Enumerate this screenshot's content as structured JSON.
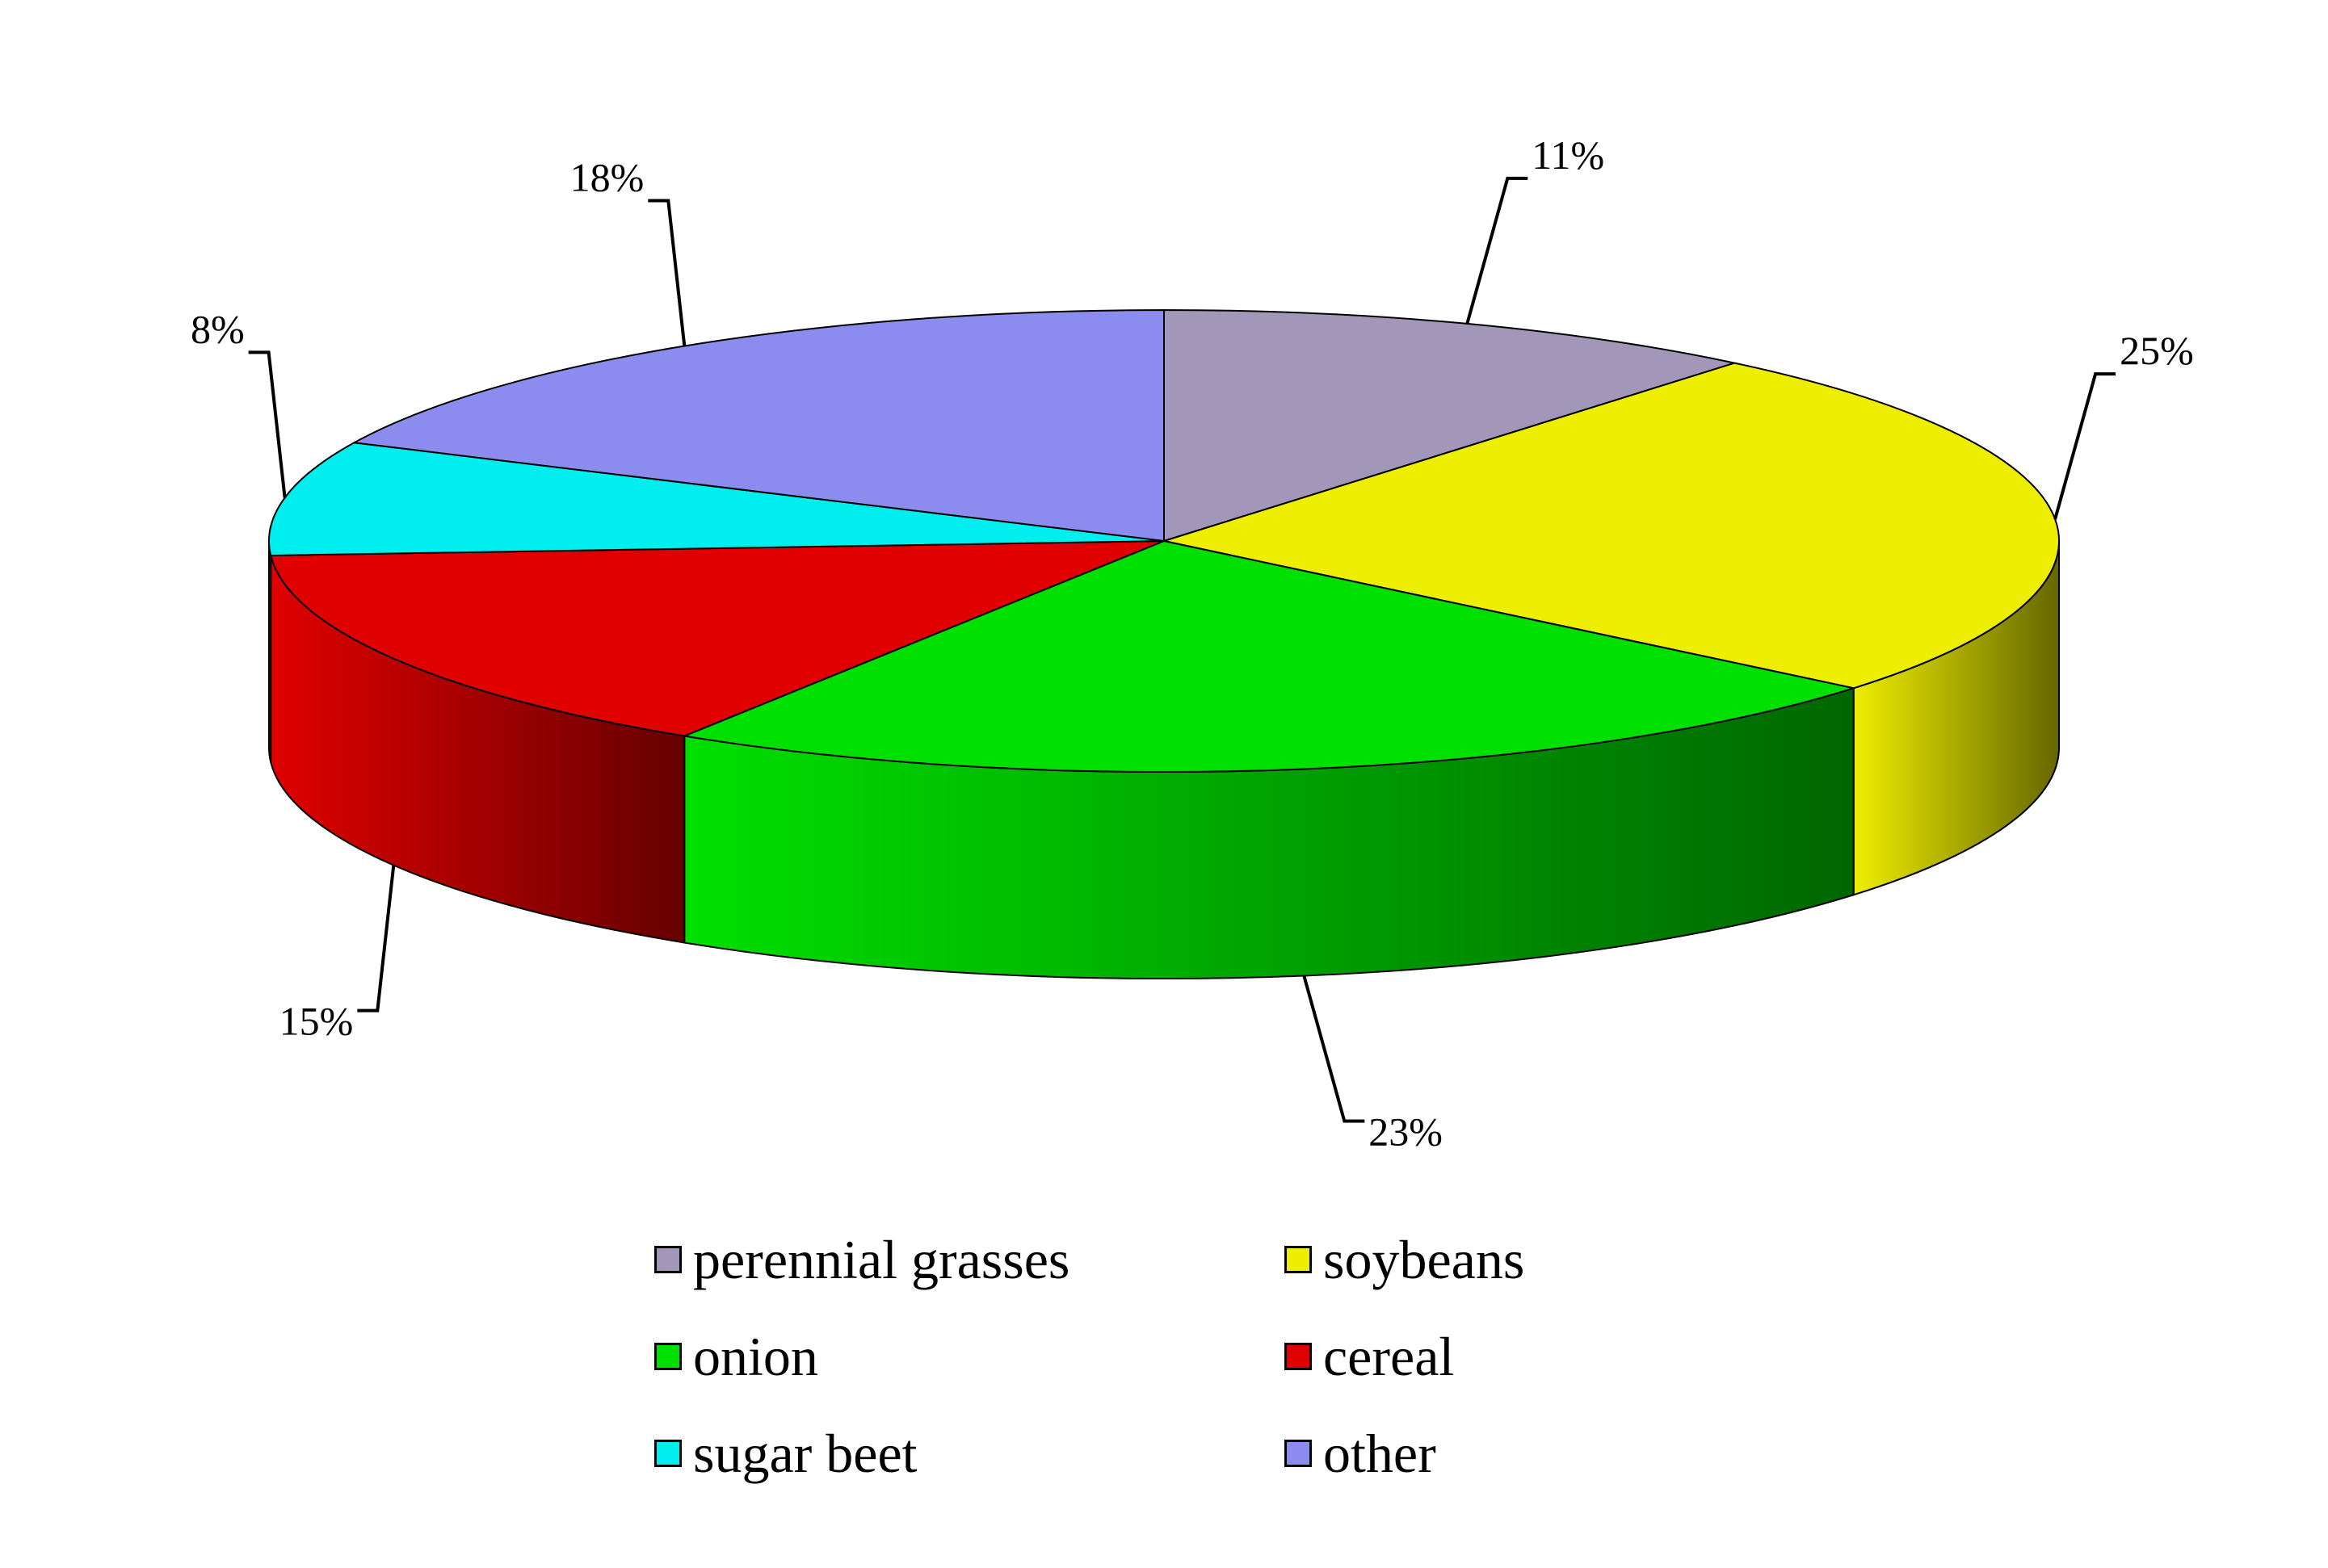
{
  "chart_data": {
    "type": "pie",
    "title": "",
    "three_d": true,
    "start_angle_deg": 90,
    "direction": "clockwise",
    "legend_position": "bottom",
    "categories": [
      "perennial grasses",
      "soybeans",
      "onion",
      "cereal",
      "sugar beet",
      "other"
    ],
    "values": [
      11,
      25,
      23,
      15,
      8,
      18
    ],
    "labels": [
      "11%",
      "25%",
      "23%",
      "15%",
      "8%",
      "18%"
    ],
    "colors": [
      "#a297b9",
      "#eeee00",
      "#00e000",
      "#e00000",
      "#00eeee",
      "#8c8cee"
    ],
    "side_colors_dark": [
      "#5a5470",
      "#666600",
      "#006600",
      "#660000",
      "#006666",
      "#505090"
    ]
  }
}
